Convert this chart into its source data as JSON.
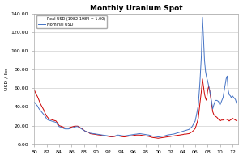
{
  "title": "Monthly Uranium Spot",
  "ylabel": "USD / lbs",
  "legend_nominal": "Nominal USD",
  "legend_real": "Real USD (1982-1984 = 1.00)",
  "xlim_start": 1980,
  "xlim_end": 2013,
  "ylim": [
    0,
    140
  ],
  "yticks": [
    0,
    20,
    40,
    60,
    80,
    100,
    120,
    140
  ],
  "background_color": "#ffffff",
  "grid_color": "#d0d0d0",
  "nominal_color": "#4472C4",
  "real_color": "#CC0000",
  "nominal_data": [
    [
      1980.0,
      45.0
    ],
    [
      1980.25,
      43.0
    ],
    [
      1980.5,
      41.0
    ],
    [
      1980.75,
      38.0
    ],
    [
      1981.0,
      36.0
    ],
    [
      1981.25,
      34.0
    ],
    [
      1981.5,
      32.0
    ],
    [
      1981.75,
      30.0
    ],
    [
      1982.0,
      27.0
    ],
    [
      1982.25,
      26.0
    ],
    [
      1982.5,
      25.5
    ],
    [
      1982.75,
      25.0
    ],
    [
      1983.0,
      24.5
    ],
    [
      1983.25,
      24.0
    ],
    [
      1983.5,
      23.5
    ],
    [
      1983.75,
      21.0
    ],
    [
      1984.0,
      19.0
    ],
    [
      1984.25,
      18.5
    ],
    [
      1984.5,
      18.0
    ],
    [
      1984.75,
      17.0
    ],
    [
      1985.0,
      16.5
    ],
    [
      1985.25,
      16.5
    ],
    [
      1985.5,
      16.5
    ],
    [
      1985.75,
      17.0
    ],
    [
      1986.0,
      17.5
    ],
    [
      1986.25,
      18.0
    ],
    [
      1986.5,
      18.5
    ],
    [
      1986.75,
      19.0
    ],
    [
      1987.0,
      19.0
    ],
    [
      1987.25,
      18.0
    ],
    [
      1987.5,
      17.0
    ],
    [
      1987.75,
      16.0
    ],
    [
      1988.0,
      15.0
    ],
    [
      1988.25,
      14.0
    ],
    [
      1988.5,
      13.5
    ],
    [
      1988.75,
      13.0
    ],
    [
      1989.0,
      12.0
    ],
    [
      1989.25,
      11.8
    ],
    [
      1989.5,
      11.5
    ],
    [
      1989.75,
      11.3
    ],
    [
      1990.0,
      11.0
    ],
    [
      1990.25,
      10.8
    ],
    [
      1990.5,
      10.5
    ],
    [
      1990.75,
      10.3
    ],
    [
      1991.0,
      10.0
    ],
    [
      1991.25,
      9.8
    ],
    [
      1991.5,
      9.5
    ],
    [
      1991.75,
      9.3
    ],
    [
      1992.0,
      9.0
    ],
    [
      1992.25,
      8.8
    ],
    [
      1992.5,
      8.5
    ],
    [
      1992.75,
      8.7
    ],
    [
      1993.0,
      9.0
    ],
    [
      1993.25,
      9.5
    ],
    [
      1993.5,
      10.0
    ],
    [
      1993.75,
      9.8
    ],
    [
      1994.0,
      9.5
    ],
    [
      1994.25,
      9.2
    ],
    [
      1994.5,
      9.0
    ],
    [
      1994.75,
      9.2
    ],
    [
      1995.0,
      9.5
    ],
    [
      1995.25,
      9.8
    ],
    [
      1995.5,
      10.0
    ],
    [
      1995.75,
      10.3
    ],
    [
      1996.0,
      10.5
    ],
    [
      1996.25,
      10.8
    ],
    [
      1996.5,
      11.0
    ],
    [
      1996.75,
      11.3
    ],
    [
      1997.0,
      11.5
    ],
    [
      1997.25,
      11.3
    ],
    [
      1997.5,
      11.0
    ],
    [
      1997.75,
      10.8
    ],
    [
      1998.0,
      10.5
    ],
    [
      1998.25,
      10.2
    ],
    [
      1998.5,
      10.0
    ],
    [
      1998.75,
      9.5
    ],
    [
      1999.0,
      9.0
    ],
    [
      1999.25,
      8.8
    ],
    [
      1999.5,
      8.5
    ],
    [
      1999.75,
      8.3
    ],
    [
      2000.0,
      8.0
    ],
    [
      2000.25,
      8.2
    ],
    [
      2000.5,
      8.5
    ],
    [
      2000.75,
      8.8
    ],
    [
      2001.0,
      9.0
    ],
    [
      2001.25,
      9.5
    ],
    [
      2001.5,
      10.0
    ],
    [
      2001.75,
      10.3
    ],
    [
      2002.0,
      10.5
    ],
    [
      2002.25,
      10.8
    ],
    [
      2002.5,
      11.0
    ],
    [
      2002.75,
      11.5
    ],
    [
      2003.0,
      12.0
    ],
    [
      2003.25,
      12.5
    ],
    [
      2003.5,
      13.0
    ],
    [
      2003.75,
      13.5
    ],
    [
      2004.0,
      14.0
    ],
    [
      2004.25,
      14.5
    ],
    [
      2004.5,
      15.0
    ],
    [
      2004.75,
      15.5
    ],
    [
      2005.0,
      16.0
    ],
    [
      2005.25,
      17.5
    ],
    [
      2005.5,
      19.0
    ],
    [
      2005.75,
      22.0
    ],
    [
      2006.0,
      25.0
    ],
    [
      2006.25,
      33.0
    ],
    [
      2006.5,
      42.0
    ],
    [
      2006.75,
      65.0
    ],
    [
      2007.0,
      95.0
    ],
    [
      2007.17,
      136.0
    ],
    [
      2007.33,
      115.0
    ],
    [
      2007.5,
      90.0
    ],
    [
      2007.67,
      78.0
    ],
    [
      2007.83,
      72.0
    ],
    [
      2008.0,
      68.0
    ],
    [
      2008.17,
      63.0
    ],
    [
      2008.33,
      58.0
    ],
    [
      2008.5,
      52.0
    ],
    [
      2008.67,
      45.0
    ],
    [
      2008.83,
      38.0
    ],
    [
      2009.0,
      42.0
    ],
    [
      2009.25,
      47.0
    ],
    [
      2009.5,
      47.0
    ],
    [
      2009.75,
      46.0
    ],
    [
      2010.0,
      42.0
    ],
    [
      2010.25,
      46.0
    ],
    [
      2010.5,
      50.0
    ],
    [
      2010.75,
      60.0
    ],
    [
      2011.0,
      70.0
    ],
    [
      2011.17,
      73.0
    ],
    [
      2011.33,
      58.0
    ],
    [
      2011.5,
      53.0
    ],
    [
      2011.67,
      52.0
    ],
    [
      2011.83,
      50.0
    ],
    [
      2012.0,
      52.0
    ],
    [
      2012.25,
      50.0
    ],
    [
      2012.5,
      48.0
    ],
    [
      2012.75,
      43.0
    ]
  ],
  "real_data": [
    [
      1980.0,
      58.0
    ],
    [
      1980.25,
      54.0
    ],
    [
      1980.5,
      51.0
    ],
    [
      1980.75,
      47.0
    ],
    [
      1981.0,
      43.0
    ],
    [
      1981.25,
      40.0
    ],
    [
      1981.5,
      37.0
    ],
    [
      1981.75,
      33.0
    ],
    [
      1982.0,
      30.0
    ],
    [
      1982.25,
      28.0
    ],
    [
      1982.5,
      27.0
    ],
    [
      1982.75,
      26.5
    ],
    [
      1983.0,
      26.0
    ],
    [
      1983.25,
      25.5
    ],
    [
      1983.5,
      25.0
    ],
    [
      1983.75,
      22.5
    ],
    [
      1984.0,
      20.0
    ],
    [
      1984.25,
      19.5
    ],
    [
      1984.5,
      19.0
    ],
    [
      1984.75,
      18.0
    ],
    [
      1985.0,
      17.5
    ],
    [
      1985.25,
      17.5
    ],
    [
      1985.5,
      17.5
    ],
    [
      1985.75,
      18.0
    ],
    [
      1986.0,
      18.5
    ],
    [
      1986.25,
      19.0
    ],
    [
      1986.5,
      19.5
    ],
    [
      1986.75,
      19.5
    ],
    [
      1987.0,
      19.5
    ],
    [
      1987.25,
      18.5
    ],
    [
      1987.5,
      17.5
    ],
    [
      1987.75,
      16.5
    ],
    [
      1988.0,
      15.0
    ],
    [
      1988.25,
      14.0
    ],
    [
      1988.5,
      13.5
    ],
    [
      1988.75,
      13.0
    ],
    [
      1989.0,
      11.5
    ],
    [
      1989.25,
      11.2
    ],
    [
      1989.5,
      11.0
    ],
    [
      1989.75,
      10.8
    ],
    [
      1990.0,
      10.5
    ],
    [
      1990.25,
      10.2
    ],
    [
      1990.5,
      10.0
    ],
    [
      1990.75,
      9.8
    ],
    [
      1991.0,
      9.5
    ],
    [
      1991.25,
      9.2
    ],
    [
      1991.5,
      9.0
    ],
    [
      1991.75,
      8.8
    ],
    [
      1992.0,
      8.5
    ],
    [
      1992.25,
      8.2
    ],
    [
      1992.5,
      8.0
    ],
    [
      1992.75,
      8.2
    ],
    [
      1993.0,
      8.5
    ],
    [
      1993.25,
      9.0
    ],
    [
      1993.5,
      9.0
    ],
    [
      1993.75,
      8.8
    ],
    [
      1994.0,
      8.5
    ],
    [
      1994.25,
      8.2
    ],
    [
      1994.5,
      8.0
    ],
    [
      1994.75,
      8.2
    ],
    [
      1995.0,
      8.5
    ],
    [
      1995.25,
      8.8
    ],
    [
      1995.5,
      9.0
    ],
    [
      1995.75,
      9.2
    ],
    [
      1996.0,
      9.5
    ],
    [
      1996.25,
      9.8
    ],
    [
      1996.5,
      10.0
    ],
    [
      1996.75,
      10.0
    ],
    [
      1997.0,
      10.0
    ],
    [
      1997.25,
      9.8
    ],
    [
      1997.5,
      9.5
    ],
    [
      1997.75,
      9.3
    ],
    [
      1998.0,
      9.0
    ],
    [
      1998.25,
      8.8
    ],
    [
      1998.5,
      8.5
    ],
    [
      1998.75,
      8.0
    ],
    [
      1999.0,
      7.5
    ],
    [
      1999.25,
      7.2
    ],
    [
      1999.5,
      7.0
    ],
    [
      1999.75,
      6.8
    ],
    [
      2000.0,
      6.5
    ],
    [
      2000.25,
      6.8
    ],
    [
      2000.5,
      7.0
    ],
    [
      2000.75,
      7.3
    ],
    [
      2001.0,
      7.5
    ],
    [
      2001.25,
      7.8
    ],
    [
      2001.5,
      8.0
    ],
    [
      2001.75,
      8.3
    ],
    [
      2002.0,
      8.5
    ],
    [
      2002.25,
      8.8
    ],
    [
      2002.5,
      9.0
    ],
    [
      2002.75,
      9.3
    ],
    [
      2003.0,
      9.5
    ],
    [
      2003.25,
      9.8
    ],
    [
      2003.5,
      10.0
    ],
    [
      2003.75,
      10.3
    ],
    [
      2004.0,
      10.5
    ],
    [
      2004.25,
      11.0
    ],
    [
      2004.5,
      11.0
    ],
    [
      2004.75,
      11.3
    ],
    [
      2005.0,
      11.5
    ],
    [
      2005.25,
      12.5
    ],
    [
      2005.5,
      13.5
    ],
    [
      2005.75,
      15.0
    ],
    [
      2006.0,
      17.0
    ],
    [
      2006.25,
      22.0
    ],
    [
      2006.5,
      28.0
    ],
    [
      2006.75,
      43.0
    ],
    [
      2007.0,
      57.0
    ],
    [
      2007.17,
      70.0
    ],
    [
      2007.33,
      62.0
    ],
    [
      2007.5,
      54.0
    ],
    [
      2007.67,
      49.0
    ],
    [
      2007.83,
      47.0
    ],
    [
      2008.0,
      57.0
    ],
    [
      2008.17,
      62.0
    ],
    [
      2008.33,
      58.0
    ],
    [
      2008.5,
      50.0
    ],
    [
      2008.67,
      42.0
    ],
    [
      2008.83,
      35.0
    ],
    [
      2009.0,
      32.0
    ],
    [
      2009.25,
      30.0
    ],
    [
      2009.5,
      29.0
    ],
    [
      2009.75,
      27.0
    ],
    [
      2010.0,
      25.0
    ],
    [
      2010.25,
      26.0
    ],
    [
      2010.5,
      26.0
    ],
    [
      2010.75,
      27.0
    ],
    [
      2011.0,
      27.0
    ],
    [
      2011.17,
      26.5
    ],
    [
      2011.33,
      26.0
    ],
    [
      2011.5,
      25.0
    ],
    [
      2011.67,
      26.0
    ],
    [
      2011.83,
      26.5
    ],
    [
      2012.0,
      28.0
    ],
    [
      2012.25,
      27.0
    ],
    [
      2012.5,
      26.0
    ],
    [
      2012.75,
      25.0
    ]
  ],
  "xtick_years": [
    1980,
    1982,
    1984,
    1986,
    1988,
    1990,
    1992,
    1994,
    1996,
    1998,
    2000,
    2002,
    2004,
    2006,
    2008,
    2010,
    2012
  ]
}
